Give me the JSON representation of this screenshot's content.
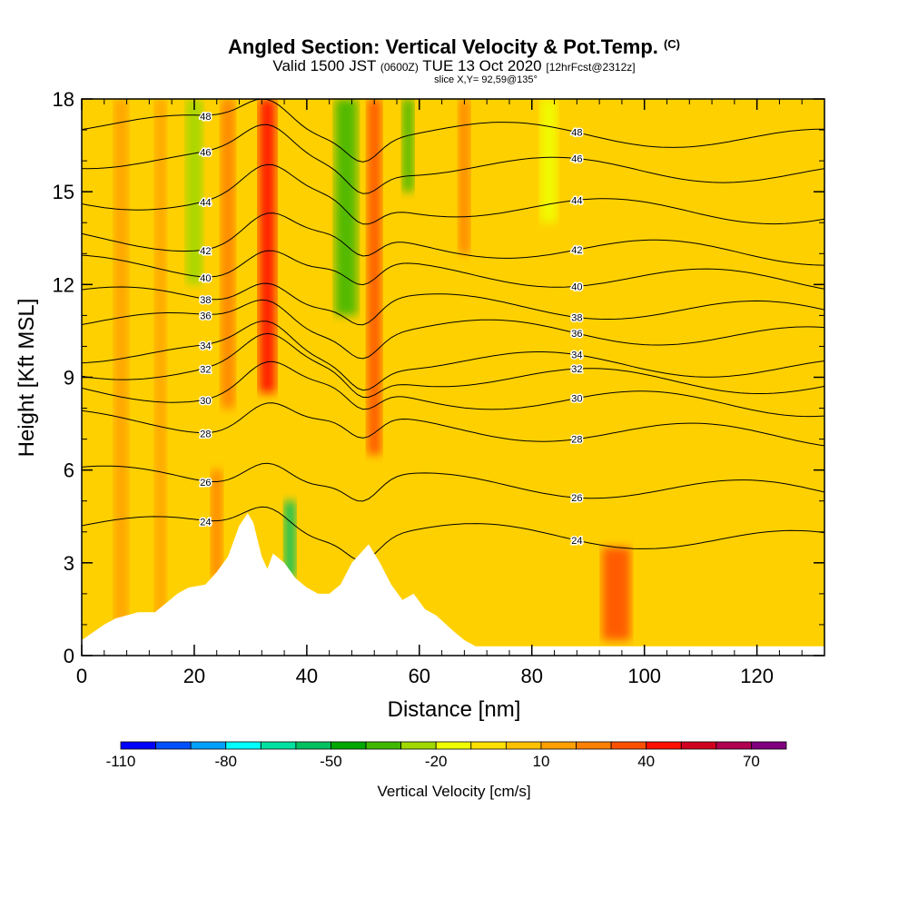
{
  "chart_data": {
    "type": "heatmap",
    "title": "Angled Section: Vertical Velocity & Pot.Temp.",
    "title_tag": "(C)",
    "subtitle_parts": [
      "Valid 1500 JST ",
      "(0600Z)",
      " TUE 13 Oct 2020 ",
      "[12hrFcst@2312z]"
    ],
    "slice_label": "slice X,Y= 92,59@135°",
    "xlabel": "Distance [nm]",
    "ylabel": "Height [Kft MSL]",
    "xlim": [
      0,
      132
    ],
    "ylim": [
      0,
      18
    ],
    "x_ticks": [
      0,
      20,
      40,
      60,
      80,
      100,
      120
    ],
    "y_ticks": [
      0,
      3,
      6,
      9,
      12,
      15,
      18
    ],
    "colorbar": {
      "label": "Vertical Velocity [cm/s]",
      "levels": [
        -110,
        -100,
        -90,
        -80,
        -70,
        -60,
        -50,
        -40,
        -30,
        -20,
        -10,
        0,
        10,
        20,
        30,
        40,
        50,
        60,
        70,
        80
      ],
      "tick_labels": [
        -110,
        -80,
        -50,
        -20,
        10,
        40,
        70
      ],
      "colors": [
        "#0000ff",
        "#0050ff",
        "#00a0ff",
        "#00ffff",
        "#00e0a0",
        "#00c060",
        "#00a800",
        "#40b800",
        "#a0d800",
        "#f0ff00",
        "#ffe000",
        "#ffc000",
        "#ffa000",
        "#ff8000",
        "#ff5000",
        "#ff1000",
        "#d00020",
        "#b00050",
        "#80007f",
        "#60008f"
      ]
    },
    "background_color": "#ffd000",
    "updraft_bands": [
      {
        "x": 7,
        "w": 2.5,
        "ytop": 18,
        "ybot": 0,
        "color": "#ffa000"
      },
      {
        "x": 14,
        "w": 2,
        "ytop": 18,
        "ybot": 1,
        "color": "#ffa000"
      },
      {
        "x": 26,
        "w": 2.5,
        "ytop": 18,
        "ybot": 8,
        "color": "#ff8000"
      },
      {
        "x": 33,
        "w": 3,
        "ytop": 18,
        "ybot": 8.5,
        "color": "#ff1000"
      },
      {
        "x": 52,
        "w": 2.5,
        "ytop": 18,
        "ybot": 6.5,
        "color": "#ff5000"
      },
      {
        "x": 68,
        "w": 2,
        "ytop": 18,
        "ybot": 13,
        "color": "#ff8000"
      },
      {
        "x": 95,
        "w": 5,
        "ytop": 3.5,
        "ybot": 0.5,
        "color": "#ff5000"
      },
      {
        "x": 24,
        "w": 2,
        "ytop": 6,
        "ybot": 2.5,
        "color": "#ff8000"
      }
    ],
    "downdraft_bands": [
      {
        "x": 20,
        "w": 3,
        "ytop": 18,
        "ybot": 12,
        "color": "#a0d800"
      },
      {
        "x": 47,
        "w": 4,
        "ytop": 18,
        "ybot": 11,
        "color": "#40b800"
      },
      {
        "x": 58,
        "w": 2,
        "ytop": 18,
        "ybot": 15,
        "color": "#40b800"
      },
      {
        "x": 37,
        "w": 2,
        "ytop": 5,
        "ybot": 2.5,
        "color": "#00c060"
      },
      {
        "x": 83,
        "w": 3,
        "ytop": 18,
        "ybot": 14,
        "color": "#f0ff00"
      }
    ],
    "isentropes": [
      {
        "label": "24",
        "base": 4.2
      },
      {
        "label": "26",
        "base": 5.8
      },
      {
        "label": "28",
        "base": 7.6
      },
      {
        "label": "30",
        "base": 8.6
      },
      {
        "label": "32",
        "base": 9.3
      },
      {
        "label": "34",
        "base": 9.8
      },
      {
        "label": "36",
        "base": 10.8
      },
      {
        "label": "38",
        "base": 11.6
      },
      {
        "label": "40",
        "base": 12.6
      },
      {
        "label": "42",
        "base": 13.5
      },
      {
        "label": "44",
        "base": 14.8
      },
      {
        "label": "46",
        "base": 16.1
      },
      {
        "label": "48",
        "base": 17.2
      }
    ],
    "terrain": [
      [
        0,
        0.5
      ],
      [
        4,
        1.0
      ],
      [
        6,
        1.2
      ],
      [
        10,
        1.4
      ],
      [
        13,
        1.4
      ],
      [
        15,
        1.7
      ],
      [
        17,
        2.0
      ],
      [
        19,
        2.2
      ],
      [
        22,
        2.3
      ],
      [
        24,
        2.7
      ],
      [
        26,
        3.2
      ],
      [
        28,
        4.2
      ],
      [
        29.5,
        4.6
      ],
      [
        30.5,
        4.3
      ],
      [
        32,
        3.2
      ],
      [
        33,
        2.8
      ],
      [
        34,
        3.3
      ],
      [
        36,
        3.0
      ],
      [
        38,
        2.5
      ],
      [
        40,
        2.2
      ],
      [
        42,
        2.0
      ],
      [
        44,
        2.0
      ],
      [
        46,
        2.3
      ],
      [
        48,
        3.0
      ],
      [
        50,
        3.4
      ],
      [
        51,
        3.6
      ],
      [
        53,
        3.0
      ],
      [
        55,
        2.3
      ],
      [
        57,
        1.8
      ],
      [
        59,
        2.0
      ],
      [
        61,
        1.5
      ],
      [
        63,
        1.3
      ],
      [
        66,
        0.8
      ],
      [
        68,
        0.5
      ],
      [
        70,
        0.3
      ],
      [
        132,
        0.3
      ]
    ]
  }
}
